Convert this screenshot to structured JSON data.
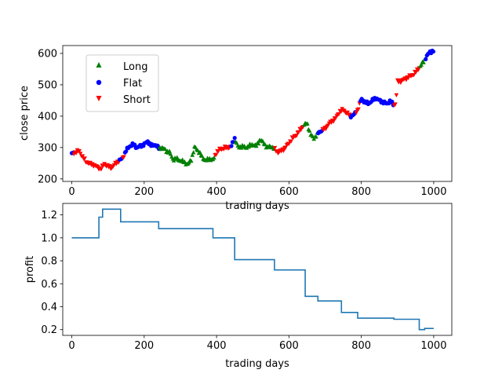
{
  "colors": {
    "long": "#008000",
    "flat": "#0000ff",
    "short": "#ff0000",
    "profit_line": "#1f77b4",
    "legend_border": "#cccccc"
  },
  "chart_data": [
    {
      "type": "scatter",
      "xlabel": "trading days",
      "ylabel": "close price",
      "xlim": [
        -25,
        1050
      ],
      "ylim": [
        192,
        625
      ],
      "xticks": [
        0,
        200,
        400,
        600,
        800,
        1000
      ],
      "yticks": [
        200,
        300,
        400,
        500,
        600
      ],
      "grid": false,
      "legend_position": "upper-left",
      "legend": [
        {
          "label": "Long",
          "marker": "triangle-up",
          "color": "#008000"
        },
        {
          "label": "Flat",
          "marker": "circle",
          "color": "#0000ff"
        },
        {
          "label": "Short",
          "marker": "triangle-down",
          "color": "#ff0000"
        }
      ],
      "price_path": [
        [
          0,
          280
        ],
        [
          10,
          285
        ],
        [
          20,
          290
        ],
        [
          30,
          270
        ],
        [
          40,
          255
        ],
        [
          50,
          248
        ],
        [
          60,
          245
        ],
        [
          70,
          238
        ],
        [
          80,
          232
        ],
        [
          90,
          248
        ],
        [
          100,
          240
        ],
        [
          110,
          235
        ],
        [
          120,
          248
        ],
        [
          130,
          258
        ],
        [
          140,
          265
        ],
        [
          150,
          290
        ],
        [
          160,
          305
        ],
        [
          170,
          310
        ],
        [
          180,
          300
        ],
        [
          190,
          305
        ],
        [
          200,
          310
        ],
        [
          210,
          320
        ],
        [
          220,
          305
        ],
        [
          230,
          310
        ],
        [
          240,
          298
        ],
        [
          250,
          300
        ],
        [
          260,
          290
        ],
        [
          270,
          285
        ],
        [
          280,
          262
        ],
        [
          290,
          265
        ],
        [
          300,
          258
        ],
        [
          310,
          255
        ],
        [
          320,
          245
        ],
        [
          330,
          262
        ],
        [
          340,
          303
        ],
        [
          350,
          288
        ],
        [
          360,
          270
        ],
        [
          370,
          258
        ],
        [
          380,
          265
        ],
        [
          390,
          260
        ],
        [
          400,
          285
        ],
        [
          410,
          295
        ],
        [
          420,
          298
        ],
        [
          430,
          300
        ],
        [
          440,
          302
        ],
        [
          450,
          330
        ],
        [
          460,
          300
        ],
        [
          470,
          305
        ],
        [
          480,
          300
        ],
        [
          490,
          305
        ],
        [
          500,
          310
        ],
        [
          510,
          305
        ],
        [
          520,
          325
        ],
        [
          530,
          315
        ],
        [
          540,
          300
        ],
        [
          550,
          305
        ],
        [
          560,
          295
        ],
        [
          570,
          285
        ],
        [
          580,
          290
        ],
        [
          590,
          300
        ],
        [
          600,
          315
        ],
        [
          610,
          330
        ],
        [
          620,
          340
        ],
        [
          630,
          355
        ],
        [
          640,
          370
        ],
        [
          650,
          378
        ],
        [
          660,
          340
        ],
        [
          670,
          330
        ],
        [
          680,
          345
        ],
        [
          690,
          355
        ],
        [
          700,
          360
        ],
        [
          710,
          375
        ],
        [
          720,
          385
        ],
        [
          730,
          395
        ],
        [
          740,
          415
        ],
        [
          750,
          420
        ],
        [
          760,
          410
        ],
        [
          770,
          400
        ],
        [
          780,
          405
        ],
        [
          790,
          420
        ],
        [
          800,
          455
        ],
        [
          810,
          445
        ],
        [
          820,
          440
        ],
        [
          830,
          450
        ],
        [
          840,
          458
        ],
        [
          850,
          450
        ],
        [
          860,
          445
        ],
        [
          870,
          440
        ],
        [
          880,
          448
        ],
        [
          890,
          435
        ],
        [
          895,
          440
        ],
        [
          900,
          510
        ],
        [
          910,
          512
        ],
        [
          920,
          518
        ],
        [
          930,
          525
        ],
        [
          940,
          530
        ],
        [
          950,
          540
        ],
        [
          960,
          555
        ],
        [
          970,
          570
        ],
        [
          980,
          590
        ],
        [
          990,
          605
        ],
        [
          1000,
          608
        ]
      ],
      "regimes": [
        [
          0,
          5,
          "flat"
        ],
        [
          6,
          130,
          "short"
        ],
        [
          131,
          140,
          "flat"
        ],
        [
          141,
          145,
          "short"
        ],
        [
          146,
          240,
          "flat"
        ],
        [
          241,
          395,
          "long"
        ],
        [
          396,
          440,
          "short"
        ],
        [
          441,
          450,
          "flat"
        ],
        [
          451,
          560,
          "long"
        ],
        [
          561,
          640,
          "short"
        ],
        [
          641,
          680,
          "long"
        ],
        [
          681,
          690,
          "flat"
        ],
        [
          691,
          770,
          "short"
        ],
        [
          771,
          785,
          "flat"
        ],
        [
          786,
          795,
          "short"
        ],
        [
          796,
          890,
          "flat"
        ],
        [
          891,
          960,
          "short"
        ],
        [
          961,
          975,
          "long"
        ],
        [
          976,
          1000,
          "flat"
        ]
      ]
    },
    {
      "type": "line",
      "xlabel": "trading days",
      "ylabel": "profit",
      "xlim": [
        -25,
        1050
      ],
      "ylim": [
        0.15,
        1.3
      ],
      "xticks": [
        0,
        200,
        400,
        600,
        800,
        1000
      ],
      "yticks": [
        0.2,
        0.4,
        0.6,
        0.8,
        1.0,
        1.2
      ],
      "ytick_labels": [
        "0.2",
        "0.4",
        "0.6",
        "0.8",
        "1.0",
        "1.2"
      ],
      "grid": false,
      "series": [
        {
          "name": "",
          "points": [
            [
              0,
              1.0
            ],
            [
              75,
              1.0
            ],
            [
              75,
              1.18
            ],
            [
              85,
              1.18
            ],
            [
              85,
              1.25
            ],
            [
              135,
              1.25
            ],
            [
              135,
              1.14
            ],
            [
              240,
              1.14
            ],
            [
              240,
              1.08
            ],
            [
              390,
              1.08
            ],
            [
              390,
              1.0
            ],
            [
              450,
              1.0
            ],
            [
              450,
              0.81
            ],
            [
              560,
              0.81
            ],
            [
              560,
              0.72
            ],
            [
              645,
              0.72
            ],
            [
              645,
              0.49
            ],
            [
              680,
              0.49
            ],
            [
              680,
              0.45
            ],
            [
              745,
              0.45
            ],
            [
              745,
              0.35
            ],
            [
              790,
              0.35
            ],
            [
              790,
              0.3
            ],
            [
              890,
              0.3
            ],
            [
              890,
              0.29
            ],
            [
              960,
              0.29
            ],
            [
              960,
              0.2
            ],
            [
              975,
              0.2
            ],
            [
              975,
              0.21
            ],
            [
              1000,
              0.21
            ]
          ]
        }
      ]
    }
  ]
}
